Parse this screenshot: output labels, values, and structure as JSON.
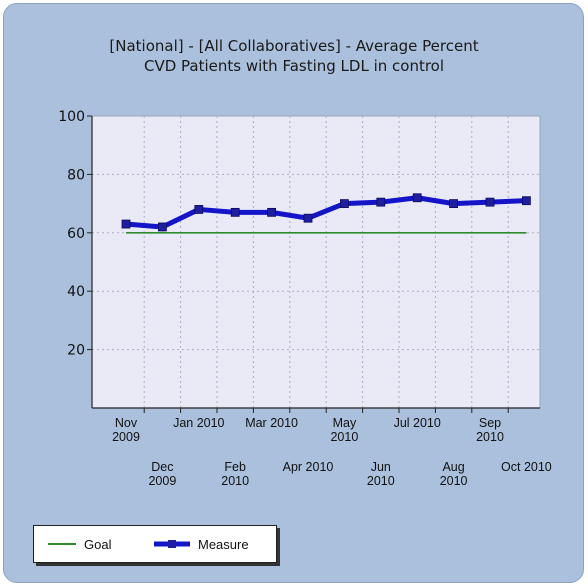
{
  "chart_data": {
    "type": "line",
    "title_lines": [
      "[National] - [All Collaboratives] - Average Percent",
      "CVD Patients with Fasting LDL in control"
    ],
    "categories": [
      [
        "Nov",
        "2009"
      ],
      [
        "Dec",
        "2009"
      ],
      [
        "Jan 2010"
      ],
      [
        "Feb",
        "2010"
      ],
      [
        "Mar 2010"
      ],
      [
        "Apr 2010"
      ],
      [
        "May",
        "2010"
      ],
      [
        "Jun",
        "2010"
      ],
      [
        "Jul 2010"
      ],
      [
        "Aug",
        "2010"
      ],
      [
        "Sep",
        "2010"
      ],
      [
        "Oct 2010"
      ]
    ],
    "ylim": [
      0,
      100
    ],
    "yticks": [
      20,
      40,
      60,
      80,
      100
    ],
    "grid": true,
    "series": [
      {
        "name": "Goal",
        "color": "#2e8b2e",
        "values": [
          60,
          60,
          60,
          60,
          60,
          60,
          60,
          60,
          60,
          60,
          60,
          60
        ]
      },
      {
        "name": "Measure",
        "color": "#1414c8",
        "values": [
          63,
          62,
          68,
          67,
          67,
          65,
          70,
          70.5,
          72,
          70,
          70.5,
          71
        ]
      }
    ],
    "legend_position": "bottom-left"
  }
}
